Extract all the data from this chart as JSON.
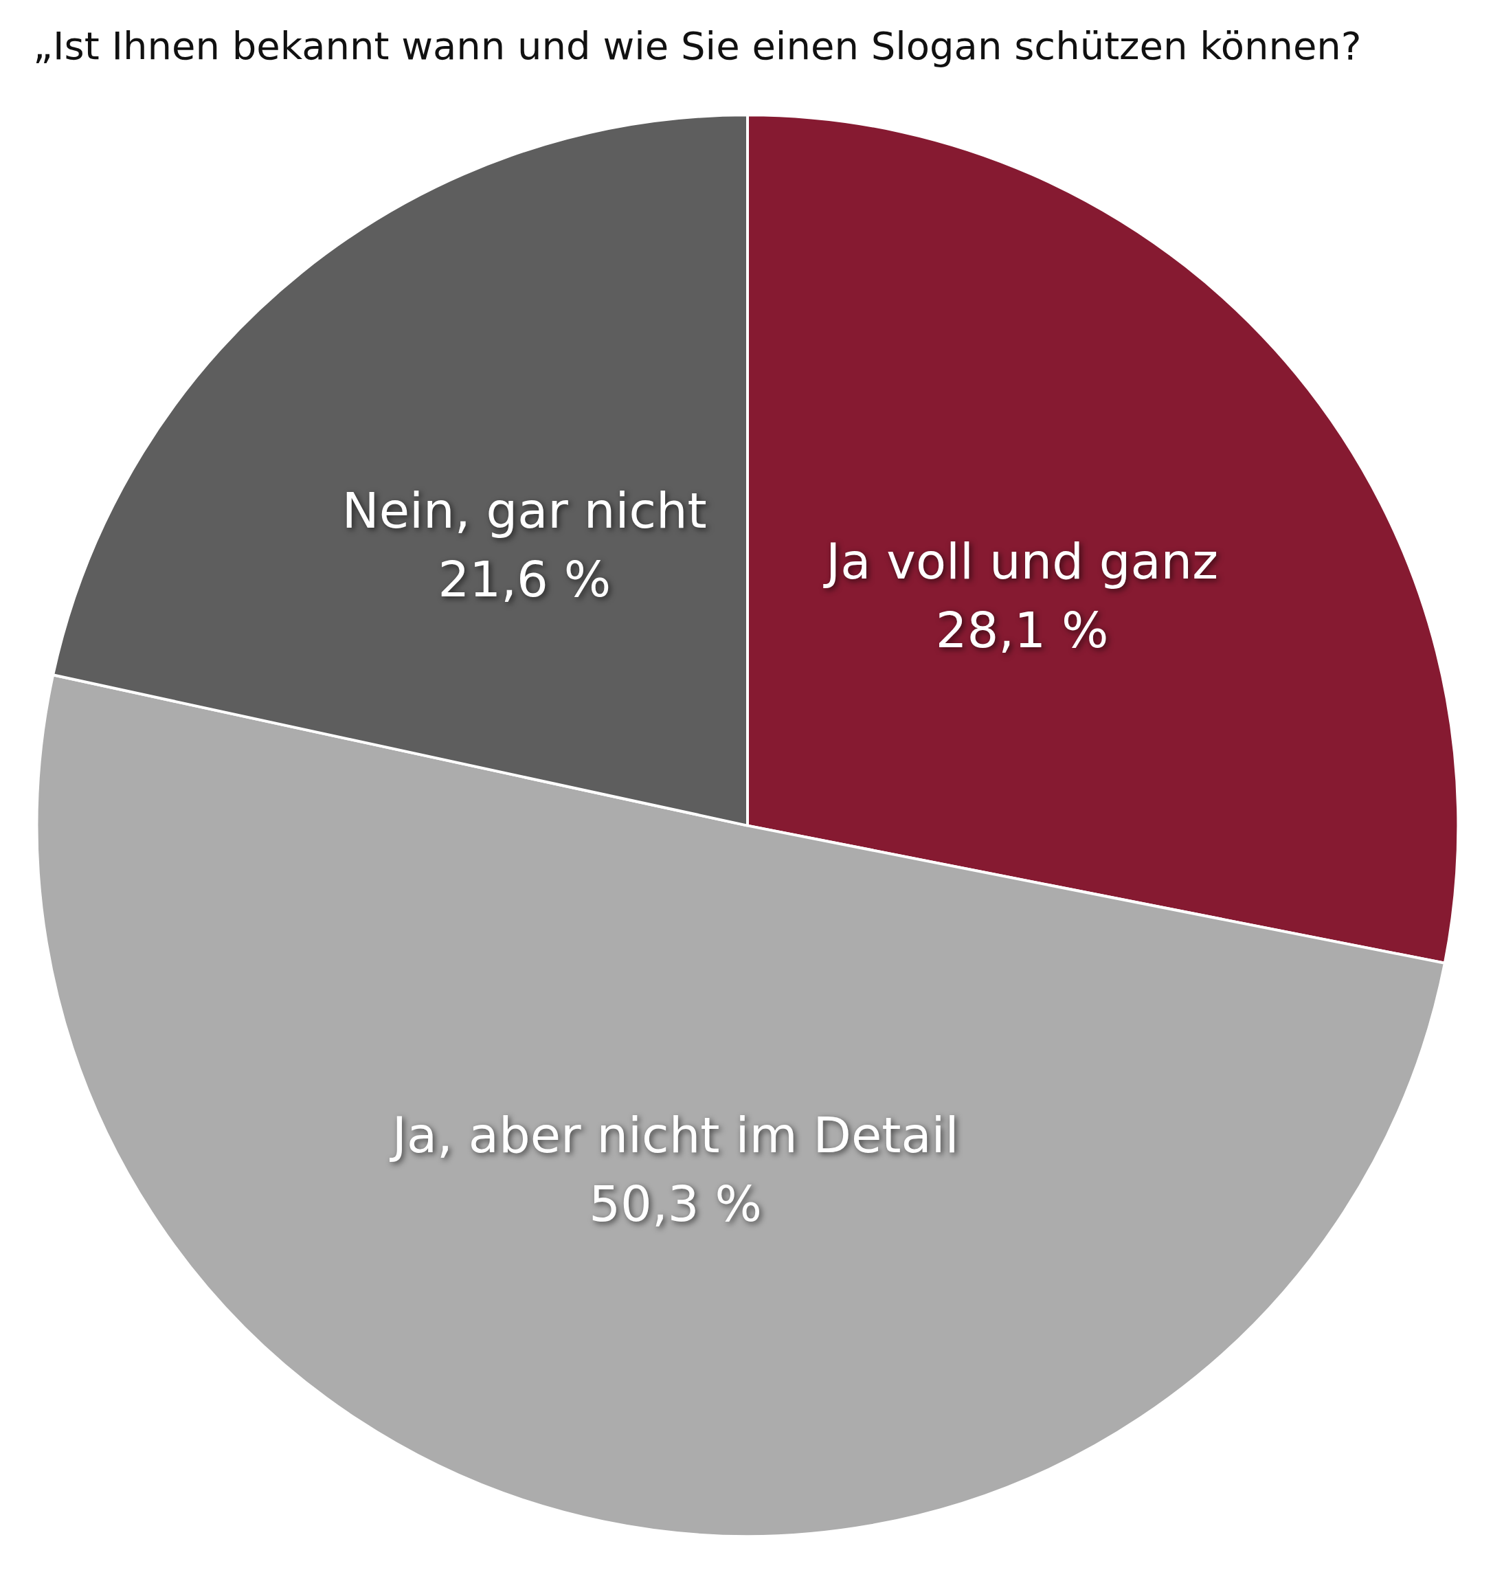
{
  "chart_data": {
    "type": "pie",
    "title": "„Ist Ihnen bekannt wann und wie Sie einen Slogan schützen können?",
    "categories": [
      "Ja voll und ganz",
      "Ja, aber nicht im Detail",
      "Nein, gar nicht"
    ],
    "values": [
      28.1,
      50.3,
      21.6
    ],
    "value_labels": [
      "28,1 %",
      "50,3 %",
      "21,6 %"
    ],
    "colors": [
      "#861a31",
      "#acacac",
      "#5e5e5e"
    ],
    "legend": false
  }
}
